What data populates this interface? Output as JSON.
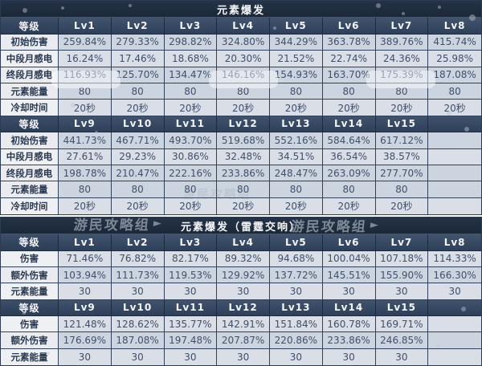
{
  "watermark": {
    "text": "游民攻略组",
    "arrow": "►"
  },
  "colors": {
    "title_bg": "#1f2c3e",
    "header_bg": "#364861",
    "row_blue": "#ccd4e0",
    "row_light": "#d9dee7",
    "label_bg": "#e9ebef",
    "text_dark": "#2a3a53"
  },
  "tables": [
    {
      "title": "元素爆发",
      "header_label": "等级",
      "sections": [
        {
          "columns": [
            "Lv1",
            "Lv2",
            "Lv3",
            "Lv4",
            "Lv5",
            "Lv6",
            "Lv7",
            "Lv8"
          ],
          "rows": [
            {
              "label": "初始伤害",
              "values": [
                "259.84%",
                "279.33%",
                "298.82%",
                "324.80%",
                "344.29%",
                "363.78%",
                "389.76%",
                "415.74%"
              ]
            },
            {
              "label": "中段月感电",
              "values": [
                "16.24%",
                "17.46%",
                "18.68%",
                "20.30%",
                "21.52%",
                "22.74%",
                "24.36%",
                "25.98%"
              ]
            },
            {
              "label": "终段月感电",
              "values": [
                "116.93%",
                "125.70%",
                "134.47%",
                "146.16%",
                "154.93%",
                "163.70%",
                "175.39%",
                "187.08%"
              ]
            },
            {
              "label": "元素能量",
              "values": [
                "80",
                "80",
                "80",
                "80",
                "80",
                "80",
                "80",
                "80"
              ]
            },
            {
              "label": "冷却时间",
              "values": [
                "20秒",
                "20秒",
                "20秒",
                "20秒",
                "20秒",
                "20秒",
                "20秒",
                "20秒"
              ]
            }
          ]
        },
        {
          "columns": [
            "Lv9",
            "Lv10",
            "Lv11",
            "Lv12",
            "Lv13",
            "Lv14",
            "Lv15",
            ""
          ],
          "rows": [
            {
              "label": "初始伤害",
              "values": [
                "441.73%",
                "467.71%",
                "493.70%",
                "519.68%",
                "552.16%",
                "584.64%",
                "617.12%",
                ""
              ]
            },
            {
              "label": "中段月感电",
              "values": [
                "27.61%",
                "29.23%",
                "30.86%",
                "32.48%",
                "34.51%",
                "36.54%",
                "38.57%",
                ""
              ]
            },
            {
              "label": "终段月感电",
              "values": [
                "198.78%",
                "210.47%",
                "222.16%",
                "233.86%",
                "248.47%",
                "263.09%",
                "277.70%",
                ""
              ]
            },
            {
              "label": "元素能量",
              "values": [
                "80",
                "80",
                "80",
                "80",
                "80",
                "80",
                "80",
                ""
              ]
            },
            {
              "label": "冷却时间",
              "values": [
                "20秒",
                "20秒",
                "20秒",
                "20秒",
                "20秒",
                "20秒",
                "20秒",
                ""
              ]
            }
          ]
        }
      ]
    },
    {
      "title": "元素爆发（雷霆交响）",
      "header_label": "等级",
      "sections": [
        {
          "columns": [
            "Lv1",
            "Lv2",
            "Lv3",
            "Lv4",
            "Lv5",
            "Lv6",
            "Lv7",
            "Lv8"
          ],
          "rows": [
            {
              "label": "伤害",
              "values": [
                "71.46%",
                "76.82%",
                "82.17%",
                "89.32%",
                "94.68%",
                "100.04%",
                "107.18%",
                "114.33%"
              ]
            },
            {
              "label": "额外伤害",
              "values": [
                "103.94%",
                "111.73%",
                "119.53%",
                "129.92%",
                "137.72%",
                "145.51%",
                "155.90%",
                "166.30%"
              ]
            },
            {
              "label": "元素能量",
              "values": [
                "30",
                "30",
                "30",
                "30",
                "30",
                "30",
                "30",
                "30"
              ]
            }
          ]
        },
        {
          "columns": [
            "Lv9",
            "Lv10",
            "Lv11",
            "Lv12",
            "Lv13",
            "Lv14",
            "Lv15",
            ""
          ],
          "rows": [
            {
              "label": "伤害",
              "values": [
                "121.48%",
                "128.62%",
                "135.77%",
                "142.91%",
                "151.84%",
                "160.78%",
                "169.71%",
                ""
              ]
            },
            {
              "label": "额外伤害",
              "values": [
                "176.69%",
                "187.08%",
                "197.48%",
                "207.87%",
                "220.86%",
                "233.86%",
                "246.85%",
                ""
              ]
            },
            {
              "label": "元素能量",
              "values": [
                "30",
                "30",
                "30",
                "30",
                "30",
                "30",
                "30",
                ""
              ]
            }
          ]
        }
      ]
    }
  ]
}
